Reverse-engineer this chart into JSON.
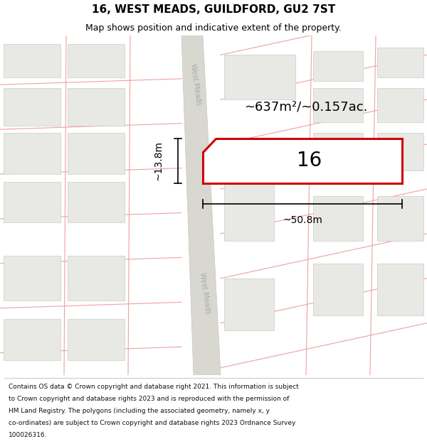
{
  "title": "16, WEST MEADS, GUILDFORD, GU2 7ST",
  "subtitle": "Map shows position and indicative extent of the property.",
  "area_text": "~637m²/~0.157ac.",
  "dim_width": "~50.8m",
  "dim_height": "~13.8m",
  "number_label": "16",
  "footer_lines": [
    "Contains OS data © Crown copyright and database right 2021. This information is subject",
    "to Crown copyright and database rights 2023 and is reproduced with the permission of",
    "HM Land Registry. The polygons (including the associated geometry, namely x, y",
    "co-ordinates) are subject to Crown copyright and database rights 2023 Ordnance Survey",
    "100026316."
  ],
  "map_bg": "#ffffff",
  "grid_line_color": "#f0a0a0",
  "highlight_border": "#cc0000",
  "road_fill": "#d8d8d0",
  "road_edge": "#c8c8c0",
  "building_fill": "#e8e8e4",
  "building_edge": "#cccccc",
  "road_label_color": "#aaaaaa",
  "title_fontsize": 11,
  "subtitle_fontsize": 9,
  "footer_fontsize": 6.5
}
